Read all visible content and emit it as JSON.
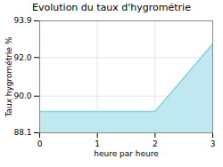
{
  "chart_data": {
    "type": "area",
    "title": "Evolution du taux d'hygrométrie",
    "xlabel": "heure par heure",
    "ylabel": "Taux hygrométrie %",
    "x": [
      0,
      1,
      2,
      3
    ],
    "series": [
      {
        "type": "area",
        "color": "#c0e8f0",
        "values": [
          89.2,
          89.2,
          89.2,
          92.7
        ]
      },
      {
        "type": "line",
        "color": "#89d4e3",
        "values": [
          89.2,
          89.2,
          89.2,
          92.7
        ]
      }
    ],
    "xlim": [
      0,
      3
    ],
    "xticks": [
      0,
      1,
      2,
      3
    ],
    "ylim": [
      88.1,
      93.9
    ],
    "yticks": [
      88.1,
      {
        "value": 90,
        "label": "90.0"
      },
      {
        "value": 92,
        "label": "92.0"
      },
      93.9
    ],
    "grid": true
  }
}
